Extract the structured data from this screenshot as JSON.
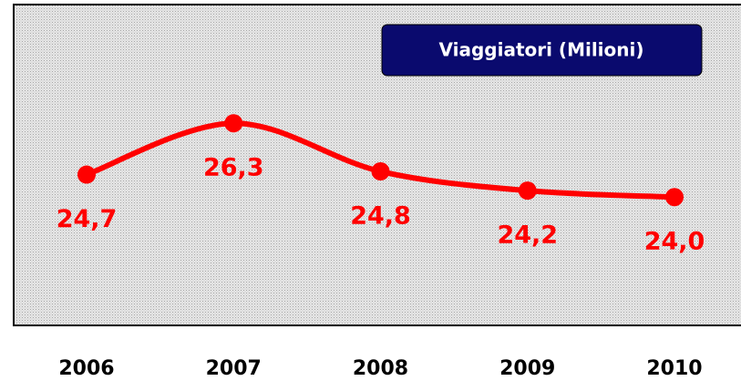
{
  "chart_data": {
    "type": "line",
    "categories": [
      "2006",
      "2007",
      "2008",
      "2009",
      "2010"
    ],
    "series": [
      {
        "name": "Viaggiatori (Milioni)",
        "color": "#ff0000",
        "values": [
          24.7,
          26.3,
          24.8,
          24.2,
          24.0
        ],
        "value_labels": [
          "24,7",
          "26,3",
          "24,8",
          "24,2",
          "24,0"
        ]
      }
    ],
    "ylim": [
      20,
      30
    ],
    "legend": "top-right"
  }
}
